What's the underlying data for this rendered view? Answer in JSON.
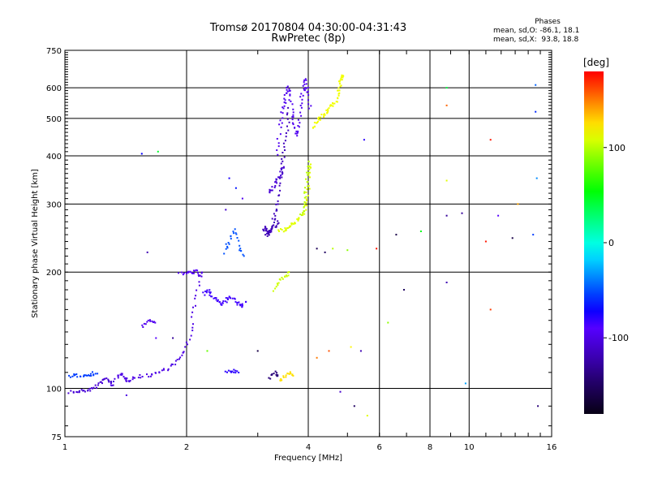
{
  "header": {
    "title": "Tromsø 20170804 04:30:00-04:31:43",
    "subtitle": "RwPretec (8p)"
  },
  "phases": {
    "title": "Phases",
    "o_line": "mean, sd,O: -86.1, 18.1",
    "x_line": "mean, sd,X:  93.8, 18.8"
  },
  "colorbar": {
    "unit": "[deg]",
    "min": -180,
    "max": 180,
    "ticks": [
      {
        "v": 100,
        "label": "100"
      },
      {
        "v": 0,
        "label": "0"
      },
      {
        "v": -100,
        "label": "-100"
      }
    ]
  },
  "chart_data": {
    "type": "scatter",
    "title": "Tromsø 20170804 04:30:00-04:31:43",
    "subtitle": "RwPretec (8p)",
    "xlabel": "Frequency [MHz]",
    "ylabel": "Stationary phase Virtual Height [km]",
    "xscale": "log",
    "yscale": "log",
    "xlim": [
      1,
      16
    ],
    "ylim": [
      75,
      750
    ],
    "xticks": [
      {
        "v": 1,
        "label": "1"
      },
      {
        "v": 2,
        "label": "2"
      },
      {
        "v": 4,
        "label": "4"
      },
      {
        "v": 6,
        "label": "6"
      },
      {
        "v": 8,
        "label": "8"
      },
      {
        "v": 10,
        "label": "10"
      },
      {
        "v": 16,
        "label": "16"
      }
    ],
    "yticks": [
      {
        "v": 75,
        "label": "75"
      },
      {
        "v": 100,
        "label": "100"
      },
      {
        "v": 200,
        "label": "200"
      },
      {
        "v": 300,
        "label": "300"
      },
      {
        "v": 400,
        "label": "400"
      },
      {
        "v": 500,
        "label": "500"
      },
      {
        "v": 600,
        "label": "600"
      },
      {
        "v": 750,
        "label": "750"
      }
    ],
    "grid": true,
    "color_encoding": "phase [deg], rainbow scale -180 to 180",
    "segments": [
      {
        "x": [
          1.03,
          1.08,
          1.13,
          1.18,
          1.22,
          1.26,
          1.29,
          1.32
        ],
        "y": [
          98,
          98,
          99,
          100,
          103,
          106,
          104,
          102
        ],
        "phase": -105
      },
      {
        "x": [
          1.33,
          1.37,
          1.4,
          1.44,
          1.5,
          1.6,
          1.7,
          1.8,
          1.9,
          1.98,
          2.05,
          2.1,
          2.15,
          2.2
        ],
        "y": [
          104,
          110,
          106,
          105,
          107,
          108,
          110,
          113,
          118,
          125,
          140,
          165,
          195,
          200
        ],
        "phase": -100
      },
      {
        "x": [
          1.03,
          1.07,
          1.12,
          1.16,
          1.2
        ],
        "y": [
          107,
          108,
          108,
          109,
          110
        ],
        "phase": -55
      },
      {
        "x": [
          1.92,
          2.0,
          2.08,
          2.15
        ],
        "y": [
          198,
          199,
          200,
          201
        ],
        "phase": -90
      },
      {
        "x": [
          2.2,
          2.26,
          2.32,
          2.38,
          2.45,
          2.52,
          2.6,
          2.68,
          2.75,
          2.8
        ],
        "y": [
          175,
          180,
          172,
          168,
          165,
          170,
          172,
          166,
          162,
          168
        ],
        "phase": -85
      },
      {
        "x": [
          2.48,
          2.55,
          2.62,
          2.7,
          2.78
        ],
        "y": [
          225,
          240,
          260,
          230,
          220
        ],
        "phase": -50
      },
      {
        "x": [
          1.55,
          1.62,
          1.68
        ],
        "y": [
          145,
          150,
          148
        ],
        "phase": -95
      },
      {
        "x": [
          3.1,
          3.15,
          3.2,
          3.25,
          3.3,
          3.35,
          3.4,
          3.45,
          3.5,
          3.55,
          3.6
        ],
        "y": [
          255,
          260,
          250,
          262,
          280,
          300,
          340,
          380,
          420,
          480,
          540
        ],
        "phase": -115
      },
      {
        "x": [
          3.35,
          3.4,
          3.45,
          3.5,
          3.55,
          3.6,
          3.65,
          3.7,
          3.75,
          3.8,
          3.85,
          3.9,
          3.95,
          4.0,
          4.05
        ],
        "y": [
          400,
          470,
          520,
          560,
          600,
          580,
          520,
          480,
          450,
          500,
          560,
          600,
          630,
          580,
          520
        ],
        "phase": -95
      },
      {
        "x": [
          3.2,
          3.28,
          3.35,
          3.42,
          3.48
        ],
        "y": [
          320,
          330,
          345,
          360,
          380
        ],
        "phase": -105
      },
      {
        "x": [
          3.15,
          3.22,
          3.3,
          3.38
        ],
        "y": [
          248,
          255,
          262,
          270
        ],
        "phase": -120
      },
      {
        "x": [
          3.4,
          3.5,
          3.6,
          3.7,
          3.8,
          3.9,
          3.95,
          4.0,
          4.02,
          4.05
        ],
        "y": [
          255,
          258,
          262,
          268,
          275,
          285,
          300,
          330,
          370,
          380
        ],
        "phase": 110
      },
      {
        "x": [
          3.85,
          3.9,
          3.95,
          4.0,
          4.05
        ],
        "y": [
          280,
          300,
          330,
          360,
          390
        ],
        "phase": 100
      },
      {
        "x": [
          4.1,
          4.2,
          4.3,
          4.4,
          4.5,
          4.6,
          4.7,
          4.75,
          4.8,
          4.85,
          4.9
        ],
        "y": [
          470,
          490,
          505,
          515,
          530,
          540,
          560,
          590,
          620,
          640,
          650
        ],
        "phase": 115
      },
      {
        "x": [
          3.3,
          3.4,
          3.5,
          3.6
        ],
        "y": [
          180,
          190,
          195,
          200
        ],
        "phase": 105
      },
      {
        "x": [
          3.4,
          3.5,
          3.6,
          3.7
        ],
        "y": [
          105,
          108,
          110,
          107
        ],
        "phase": 125
      },
      {
        "x": [
          3.2,
          3.3,
          3.4
        ],
        "y": [
          106,
          110,
          108
        ],
        "phase": -140
      },
      {
        "x": [
          2.5,
          2.6,
          2.7
        ],
        "y": [
          110,
          111,
          110
        ],
        "phase": -80
      }
    ],
    "points": [
      {
        "x": 1.55,
        "y": 405,
        "phase": -70
      },
      {
        "x": 1.7,
        "y": 410,
        "phase": 45
      },
      {
        "x": 1.6,
        "y": 225,
        "phase": -120
      },
      {
        "x": 1.68,
        "y": 135,
        "phase": -90
      },
      {
        "x": 1.85,
        "y": 135,
        "phase": -130
      },
      {
        "x": 2.25,
        "y": 125,
        "phase": 80
      },
      {
        "x": 2.5,
        "y": 290,
        "phase": -110
      },
      {
        "x": 2.75,
        "y": 310,
        "phase": -95
      },
      {
        "x": 2.55,
        "y": 350,
        "phase": -75
      },
      {
        "x": 2.65,
        "y": 330,
        "phase": -65
      },
      {
        "x": 4.2,
        "y": 230,
        "phase": -155
      },
      {
        "x": 4.4,
        "y": 225,
        "phase": -150
      },
      {
        "x": 4.6,
        "y": 230,
        "phase": 100
      },
      {
        "x": 5.0,
        "y": 228,
        "phase": 90
      },
      {
        "x": 5.5,
        "y": 440,
        "phase": -80
      },
      {
        "x": 5.9,
        "y": 230,
        "phase": 175
      },
      {
        "x": 6.6,
        "y": 250,
        "phase": -160
      },
      {
        "x": 6.9,
        "y": 180,
        "phase": -150
      },
      {
        "x": 6.3,
        "y": 148,
        "phase": 90
      },
      {
        "x": 7.6,
        "y": 255,
        "phase": 50
      },
      {
        "x": 8.8,
        "y": 600,
        "phase": 40
      },
      {
        "x": 8.8,
        "y": 540,
        "phase": 155
      },
      {
        "x": 8.8,
        "y": 345,
        "phase": 110
      },
      {
        "x": 8.8,
        "y": 280,
        "phase": -130
      },
      {
        "x": 8.8,
        "y": 188,
        "phase": -120
      },
      {
        "x": 9.6,
        "y": 284,
        "phase": -130
      },
      {
        "x": 9.8,
        "y": 103,
        "phase": -30
      },
      {
        "x": 11.0,
        "y": 240,
        "phase": 175
      },
      {
        "x": 11.3,
        "y": 160,
        "phase": 165
      },
      {
        "x": 11.3,
        "y": 440,
        "phase": 175
      },
      {
        "x": 11.8,
        "y": 280,
        "phase": -90
      },
      {
        "x": 12.8,
        "y": 245,
        "phase": -160
      },
      {
        "x": 13.2,
        "y": 300,
        "phase": 140
      },
      {
        "x": 14.4,
        "y": 250,
        "phase": -55
      },
      {
        "x": 14.6,
        "y": 610,
        "phase": -45
      },
      {
        "x": 14.6,
        "y": 520,
        "phase": -60
      },
      {
        "x": 14.7,
        "y": 350,
        "phase": -35
      },
      {
        "x": 14.8,
        "y": 90,
        "phase": -140
      },
      {
        "x": 5.2,
        "y": 90,
        "phase": -150
      },
      {
        "x": 5.6,
        "y": 85,
        "phase": 110
      },
      {
        "x": 4.8,
        "y": 98,
        "phase": -110
      },
      {
        "x": 4.2,
        "y": 120,
        "phase": 150
      },
      {
        "x": 4.5,
        "y": 125,
        "phase": 160
      },
      {
        "x": 5.1,
        "y": 128,
        "phase": 120
      },
      {
        "x": 5.4,
        "y": 125,
        "phase": -120
      },
      {
        "x": 3.0,
        "y": 125,
        "phase": -160
      },
      {
        "x": 1.3,
        "y": 102,
        "phase": -90
      },
      {
        "x": 1.42,
        "y": 96,
        "phase": -100
      }
    ]
  }
}
